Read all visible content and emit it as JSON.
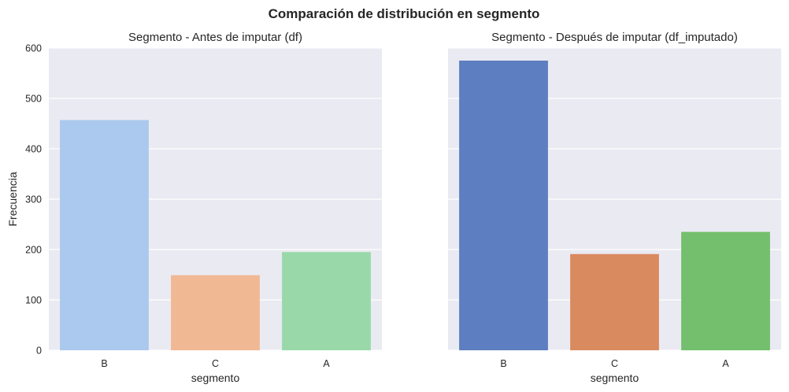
{
  "figure": {
    "title": "Comparación de distribución en segmento"
  },
  "chart_data": [
    {
      "type": "bar",
      "title": "Segmento - Antes de imputar (df)",
      "xlabel": "segmento",
      "ylabel": "Frecuencia",
      "categories": [
        "B",
        "C",
        "A"
      ],
      "values": [
        457,
        149,
        195
      ],
      "colors": [
        "#abc9ee",
        "#f1b894",
        "#99d9a9"
      ],
      "ylim": [
        0,
        600
      ],
      "yticks": [
        0,
        100,
        200,
        300,
        400,
        500,
        600
      ],
      "grid": true,
      "legend": "none"
    },
    {
      "type": "bar",
      "title": "Segmento - Después de imputar (df_imputado)",
      "xlabel": "segmento",
      "ylabel": "",
      "categories": [
        "B",
        "C",
        "A"
      ],
      "values": [
        575,
        191,
        235
      ],
      "colors": [
        "#5d7ec0",
        "#da8a5f",
        "#74bf6d"
      ],
      "ylim": [
        0,
        600
      ],
      "yticks": [
        0,
        100,
        200,
        300,
        400,
        500,
        600
      ],
      "grid": true,
      "legend": "none",
      "shared_y": true
    }
  ]
}
